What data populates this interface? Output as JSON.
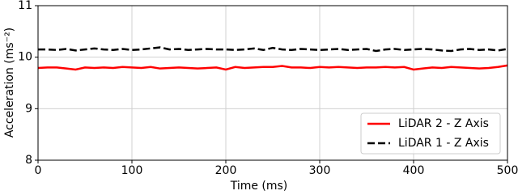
{
  "chart_data": {
    "type": "line",
    "xlabel": "Time (ms)",
    "ylabel": "Acceleration (ms⁻²)",
    "x": [
      0,
      10,
      20,
      30,
      40,
      50,
      60,
      70,
      80,
      90,
      100,
      110,
      120,
      130,
      140,
      150,
      160,
      170,
      180,
      190,
      200,
      210,
      220,
      230,
      240,
      250,
      260,
      270,
      280,
      290,
      300,
      310,
      320,
      330,
      340,
      350,
      360,
      370,
      380,
      390,
      400,
      410,
      420,
      430,
      440,
      450,
      460,
      470,
      480,
      490,
      500
    ],
    "series": [
      {
        "name": "LiDAR 2 - Z Axis",
        "color": "#ff0000",
        "dash": "solid",
        "values": [
          9.79,
          9.8,
          9.8,
          9.78,
          9.76,
          9.8,
          9.79,
          9.8,
          9.79,
          9.81,
          9.8,
          9.79,
          9.81,
          9.78,
          9.79,
          9.8,
          9.79,
          9.78,
          9.79,
          9.8,
          9.76,
          9.81,
          9.79,
          9.8,
          9.81,
          9.81,
          9.83,
          9.8,
          9.8,
          9.79,
          9.81,
          9.8,
          9.81,
          9.8,
          9.79,
          9.8,
          9.8,
          9.81,
          9.8,
          9.81,
          9.76,
          9.78,
          9.8,
          9.79,
          9.81,
          9.8,
          9.79,
          9.78,
          9.79,
          9.81,
          9.84
        ]
      },
      {
        "name": "LiDAR 1 - Z Axis",
        "color": "#000000",
        "dash": "dashed",
        "values": [
          10.15,
          10.15,
          10.14,
          10.16,
          10.13,
          10.15,
          10.17,
          10.15,
          10.14,
          10.16,
          10.14,
          10.15,
          10.17,
          10.19,
          10.15,
          10.16,
          10.14,
          10.15,
          10.16,
          10.15,
          10.15,
          10.14,
          10.15,
          10.17,
          10.14,
          10.18,
          10.15,
          10.14,
          10.16,
          10.15,
          10.14,
          10.15,
          10.16,
          10.14,
          10.15,
          10.16,
          10.12,
          10.15,
          10.16,
          10.14,
          10.15,
          10.16,
          10.15,
          10.13,
          10.12,
          10.15,
          10.16,
          10.14,
          10.15,
          10.13,
          10.16
        ]
      }
    ],
    "xlim": [
      0,
      500
    ],
    "xticks": [
      0,
      100,
      200,
      300,
      400,
      500
    ],
    "ylim": [
      8,
      11
    ],
    "yticks": [
      8,
      9,
      10,
      11
    ],
    "grid": true,
    "legend": "lower right"
  }
}
